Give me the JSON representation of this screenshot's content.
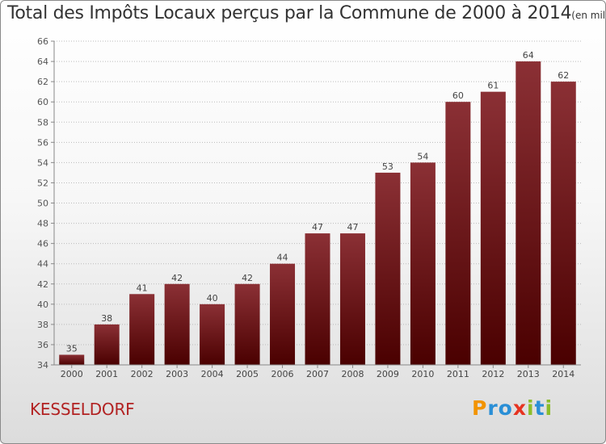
{
  "chart_data": {
    "type": "bar",
    "title": "Total des Impôts Locaux perçus par la Commune de 2000 à 2014",
    "unit_label": "(en milliers d'€)",
    "categories": [
      "2000",
      "2001",
      "2002",
      "2003",
      "2004",
      "2005",
      "2006",
      "2007",
      "2008",
      "2009",
      "2010",
      "2011",
      "2012",
      "2013",
      "2014"
    ],
    "values": [
      35,
      38,
      41,
      42,
      40,
      42,
      44,
      47,
      47,
      53,
      54,
      60,
      61,
      64,
      62
    ],
    "ylim": [
      34,
      66
    ],
    "yticks": [
      34,
      36,
      38,
      40,
      42,
      44,
      46,
      48,
      50,
      52,
      54,
      56,
      58,
      60,
      62,
      64,
      66
    ],
    "xlabel": "",
    "ylabel": "",
    "grid": "dotted-horizontal",
    "bar_color_top": "#8b3035",
    "bar_color_bottom": "#4a0000"
  },
  "commune_name": "KESSELDORF",
  "brand": {
    "letters": [
      "P",
      "r",
      "o",
      "x",
      "i",
      "t",
      "i"
    ],
    "colors": [
      "#f29400",
      "#2a8fd6",
      "#2a8fd6",
      "#e63320",
      "#8cbd2a",
      "#2a8fd6",
      "#8cbd2a"
    ]
  }
}
